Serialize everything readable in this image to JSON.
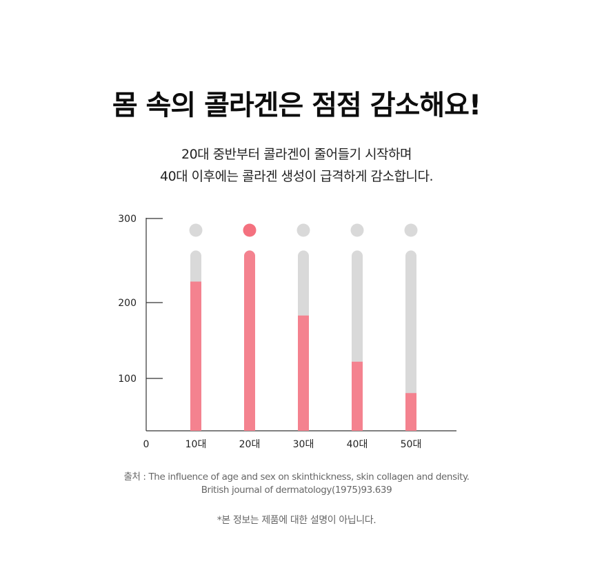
{
  "header": {
    "title": "몸 속의 콜라겐은 점점 감소해요!",
    "subtitle_line1": "20대 중반부터 콜라겐이 줄어들기 시작하며",
    "subtitle_line2": "40대 이후에는 콜라겐 생성이 급격하게 감소합니다."
  },
  "chart_data": {
    "type": "bar",
    "categories": [
      "10대",
      "20대",
      "30대",
      "40대",
      "50대"
    ],
    "values": [
      225,
      262,
      183,
      122,
      72
    ],
    "track_max": 262,
    "highlight_index": 1,
    "y_ticks": [
      "300",
      "200",
      "100",
      "0"
    ],
    "y_tick_values": [
      300,
      200,
      100,
      0
    ],
    "ylim": [
      0,
      300
    ],
    "title": "",
    "xlabel": "",
    "ylabel": "",
    "colors": {
      "bar": "#f4828f",
      "track": "#d9d9d9",
      "dot_active": "#f4717f",
      "dot_inactive": "#d9d9d9",
      "axis": "#333333"
    }
  },
  "footer": {
    "source_line1": "출처 : The influence of age and sex on skinthickness, skin collagen and density.",
    "source_line2": "British journal of dermatology(1975)93.639",
    "disclaimer": "*본 정보는 제품에 대한 설명이 아닙니다."
  }
}
